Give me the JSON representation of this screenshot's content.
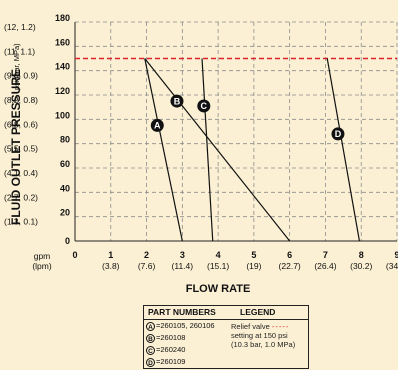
{
  "chart_data": {
    "type": "line",
    "ylabel": "FLUID OUTLET PRESSURE",
    "ylabel_units": "psi (bar, MPa)",
    "xlabel": "FLOW RATE",
    "x_unit_primary": "gpm",
    "x_unit_secondary": "(lpm)",
    "xlim": [
      0,
      9
    ],
    "ylim": [
      0,
      180
    ],
    "x_ticks": [
      {
        "value": 0,
        "label": "0",
        "sub": ""
      },
      {
        "value": 1,
        "label": "1",
        "sub": "(3.8)"
      },
      {
        "value": 2,
        "label": "2",
        "sub": "(7.6)"
      },
      {
        "value": 3,
        "label": "3",
        "sub": "(11.4)"
      },
      {
        "value": 4,
        "label": "4",
        "sub": "(15.1)"
      },
      {
        "value": 5,
        "label": "5",
        "sub": "(19)"
      },
      {
        "value": 6,
        "label": "6",
        "sub": "(22.7)"
      },
      {
        "value": 7,
        "label": "7",
        "sub": "(26.4)"
      },
      {
        "value": 8,
        "label": "8",
        "sub": "(30.2)"
      },
      {
        "value": 9,
        "label": "9",
        "sub": "(34.1)"
      }
    ],
    "y_ticks": [
      {
        "value": 0,
        "label": "0",
        "sub": ""
      },
      {
        "value": 20,
        "label": "20",
        "sub": "(1.3, 0.1)"
      },
      {
        "value": 40,
        "label": "40",
        "sub": "(2.7, 0.2)"
      },
      {
        "value": 60,
        "label": "60",
        "sub": "(4.1, 0.4)"
      },
      {
        "value": 80,
        "label": "80",
        "sub": "(5.5, 0.5)"
      },
      {
        "value": 100,
        "label": "100",
        "sub": "(6.8, 0.6)"
      },
      {
        "value": 120,
        "label": "120",
        "sub": "(8.2, 0.8)"
      },
      {
        "value": 140,
        "label": "140",
        "sub": "(9.6, 0.9)"
      },
      {
        "value": 160,
        "label": "160",
        "sub": "(11, 1.1)"
      },
      {
        "value": 180,
        "label": "180",
        "sub": "(12, 1.2)"
      }
    ],
    "grid": true,
    "relief_valve_setting": 150,
    "relief_valve_color": "#e0202a",
    "series": [
      {
        "name": "A",
        "x": [
          1.95,
          3.0
        ],
        "y": [
          150,
          0
        ],
        "marker": [
          2.3,
          95
        ]
      },
      {
        "name": "B",
        "x": [
          1.95,
          6.0
        ],
        "y": [
          150,
          0
        ],
        "marker": [
          2.85,
          115
        ]
      },
      {
        "name": "C",
        "x": [
          3.55,
          3.85
        ],
        "y": [
          150,
          0
        ],
        "marker": [
          3.6,
          111
        ]
      },
      {
        "name": "D",
        "x": [
          7.05,
          7.95
        ],
        "y": [
          150,
          0
        ],
        "marker": [
          7.35,
          88
        ]
      }
    ],
    "legend": {
      "header_parts": "PART NUMBERS",
      "header_legend": "LEGEND",
      "parts": [
        {
          "letter": "A",
          "text": "=260105, 260106"
        },
        {
          "letter": "B",
          "text": "=260108"
        },
        {
          "letter": "C",
          "text": "=260240"
        },
        {
          "letter": "D",
          "text": "=260109"
        }
      ],
      "relief_text_1": "Relief valve",
      "relief_text_2": "setting at 150 psi",
      "relief_text_3": "(10.3 bar, 1.0 MPa)"
    }
  }
}
